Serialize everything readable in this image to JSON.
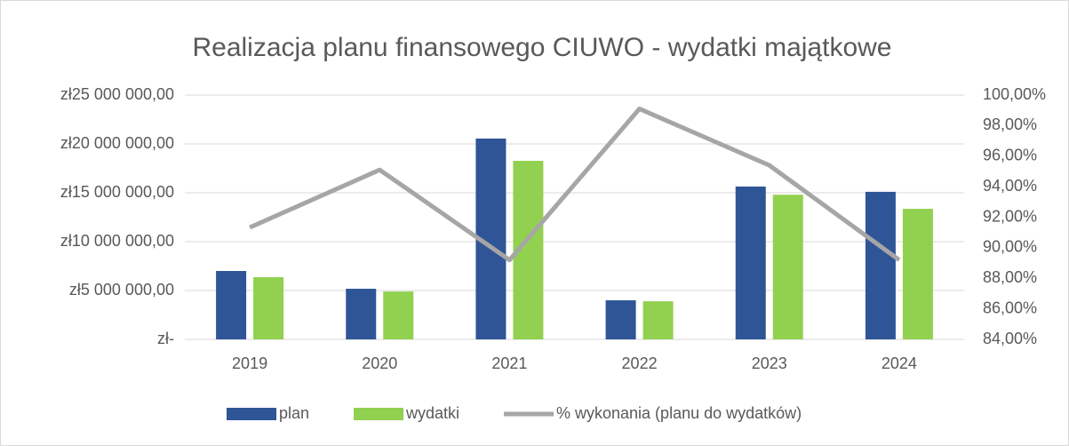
{
  "chart_data": {
    "type": "bar-line",
    "title": "Realizacja planu finansowego CIUWO - wydatki majątkowe",
    "categories": [
      "2019",
      "2020",
      "2021",
      "2022",
      "2023",
      "2024"
    ],
    "series": [
      {
        "name": "plan",
        "color": "#2f5597",
        "type": "bar",
        "values": [
          7000000,
          5180000,
          20550000,
          4000000,
          15640000,
          15100000
        ]
      },
      {
        "name": "wydatki",
        "color": "#92d050",
        "type": "bar",
        "values": [
          6360000,
          4900000,
          18270000,
          3900000,
          14800000,
          13360000
        ]
      },
      {
        "name": "% wykonania (planu do wydatków)",
        "color": "#a6a6a6",
        "type": "line",
        "axis": "y2",
        "values": [
          91.33,
          95.1,
          89.2,
          99.1,
          95.4,
          89.2
        ]
      }
    ],
    "ylim": [
      0,
      25000000
    ],
    "yticks": [
      {
        "value": 0,
        "label": "zł-"
      },
      {
        "value": 5000000,
        "label": "zł5 000 000,00"
      },
      {
        "value": 10000000,
        "label": "zł10 000 000,00"
      },
      {
        "value": 15000000,
        "label": "zł15 000 000,00"
      },
      {
        "value": 20000000,
        "label": "zł20 000 000,00"
      },
      {
        "value": 25000000,
        "label": "zł25 000 000,00"
      }
    ],
    "y2lim": [
      84,
      100
    ],
    "y2ticks": [
      {
        "value": 84,
        "label": "84,00%"
      },
      {
        "value": 86,
        "label": "86,00%"
      },
      {
        "value": 88,
        "label": "88,00%"
      },
      {
        "value": 90,
        "label": "90,00%"
      },
      {
        "value": 92,
        "label": "92,00%"
      },
      {
        "value": 94,
        "label": "94,00%"
      },
      {
        "value": 96,
        "label": "96,00%"
      },
      {
        "value": 98,
        "label": "98,00%"
      },
      {
        "value": 100,
        "label": "100,00%"
      }
    ],
    "grid": true,
    "legend": "bottom"
  }
}
